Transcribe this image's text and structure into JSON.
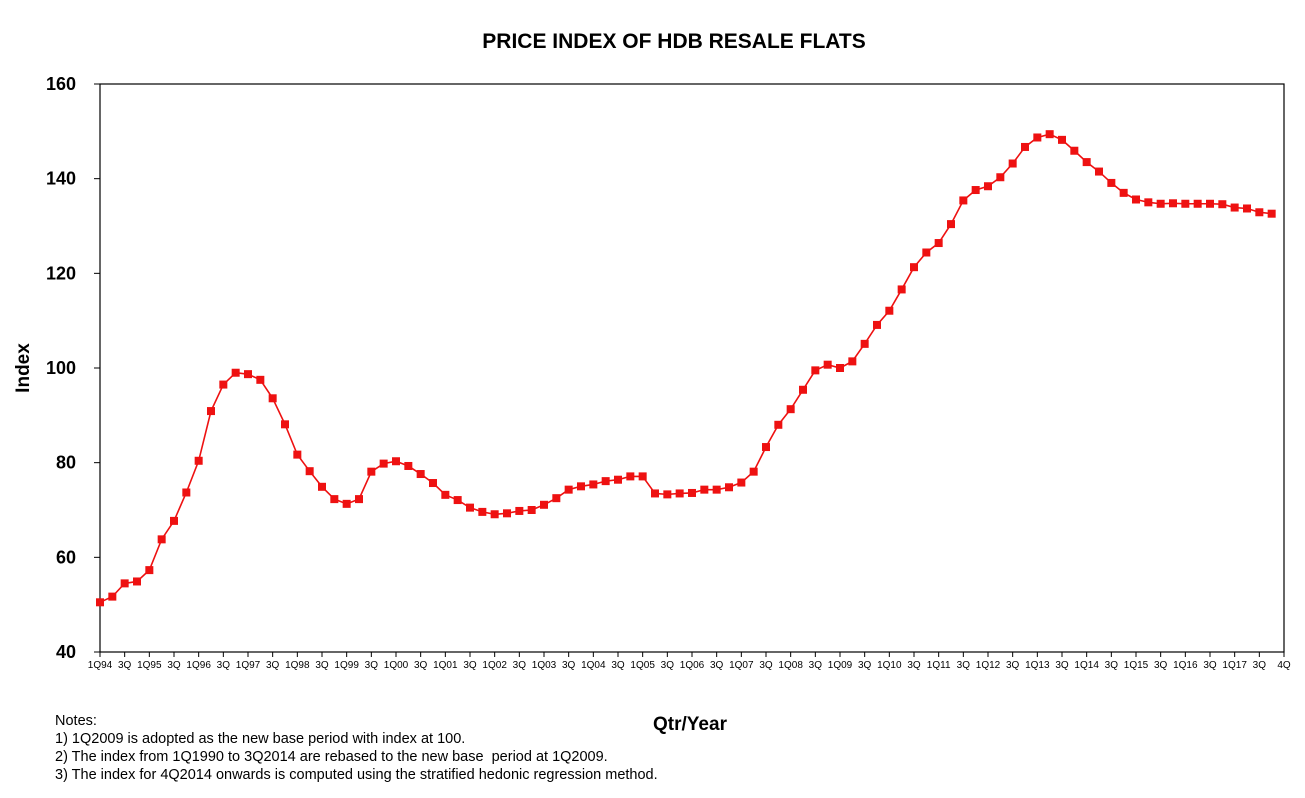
{
  "chart_data": {
    "type": "line",
    "title": "PRICE INDEX OF HDB RESALE FLATS",
    "xlabel": "Qtr/Year",
    "ylabel": "Index",
    "ylim": [
      40,
      160
    ],
    "yticks": [
      40,
      60,
      80,
      100,
      120,
      140,
      160
    ],
    "grid": false,
    "legend": "none",
    "color": "#ee1111",
    "tick_labels": [
      "1Q94",
      "3Q",
      "1Q95",
      "3Q",
      "1Q96",
      "3Q",
      "1Q97",
      "3Q",
      "1Q98",
      "3Q",
      "1Q99",
      "3Q",
      "1Q00",
      "3Q",
      "1Q01",
      "3Q",
      "1Q02",
      "3Q",
      "1Q03",
      "3Q",
      "1Q04",
      "3Q",
      "1Q05",
      "3Q",
      "1Q06",
      "3Q",
      "1Q07",
      "3Q",
      "1Q08",
      "3Q",
      "1Q09",
      "3Q",
      "1Q10",
      "3Q",
      "1Q11",
      "3Q",
      "1Q12",
      "3Q",
      "1Q13",
      "3Q",
      "1Q14",
      "3Q",
      "1Q15",
      "3Q",
      "1Q16",
      "3Q",
      "1Q17",
      "3Q",
      "4Q"
    ],
    "x": [
      "1Q94",
      "2Q94",
      "3Q94",
      "4Q94",
      "1Q95",
      "2Q95",
      "3Q95",
      "4Q95",
      "1Q96",
      "2Q96",
      "3Q96",
      "4Q96",
      "1Q97",
      "2Q97",
      "3Q97",
      "4Q97",
      "1Q98",
      "2Q98",
      "3Q98",
      "4Q98",
      "1Q99",
      "2Q99",
      "3Q99",
      "4Q99",
      "1Q00",
      "2Q00",
      "3Q00",
      "4Q00",
      "1Q01",
      "2Q01",
      "3Q01",
      "4Q01",
      "1Q02",
      "2Q02",
      "3Q02",
      "4Q02",
      "1Q03",
      "2Q03",
      "3Q03",
      "4Q03",
      "1Q04",
      "2Q04",
      "3Q04",
      "4Q04",
      "1Q05",
      "2Q05",
      "3Q05",
      "4Q05",
      "1Q06",
      "2Q06",
      "3Q06",
      "4Q06",
      "1Q07",
      "2Q07",
      "3Q07",
      "4Q07",
      "1Q08",
      "2Q08",
      "3Q08",
      "4Q08",
      "1Q09",
      "2Q09",
      "3Q09",
      "4Q09",
      "1Q10",
      "2Q10",
      "3Q10",
      "4Q10",
      "1Q11",
      "2Q11",
      "3Q11",
      "4Q11",
      "1Q12",
      "2Q12",
      "3Q12",
      "4Q12",
      "1Q13",
      "2Q13",
      "3Q13",
      "4Q13",
      "1Q14",
      "2Q14",
      "3Q14",
      "4Q14",
      "1Q15",
      "2Q15",
      "3Q15",
      "4Q15",
      "1Q16",
      "2Q16",
      "3Q16",
      "4Q16",
      "1Q17",
      "2Q17",
      "3Q17",
      "4Q17"
    ],
    "values": [
      50.5,
      51.7,
      54.5,
      54.9,
      57.3,
      63.8,
      67.7,
      73.7,
      80.4,
      90.9,
      96.5,
      99.0,
      98.7,
      97.5,
      93.6,
      88.1,
      81.7,
      78.2,
      74.9,
      72.3,
      71.3,
      72.3,
      78.1,
      79.8,
      80.3,
      79.3,
      77.6,
      75.7,
      73.2,
      72.1,
      70.5,
      69.6,
      69.1,
      69.3,
      69.8,
      70.0,
      71.1,
      72.5,
      74.3,
      75.0,
      75.4,
      76.1,
      76.4,
      77.1,
      77.1,
      73.5,
      73.3,
      73.5,
      73.6,
      74.3,
      74.3,
      74.8,
      75.8,
      78.1,
      83.3,
      88.0,
      91.3,
      95.4,
      99.5,
      100.7,
      100.0,
      101.4,
      105.1,
      109.1,
      112.1,
      116.6,
      121.3,
      124.4,
      126.4,
      130.4,
      135.4,
      137.6,
      138.4,
      140.3,
      143.2,
      146.7,
      148.7,
      149.4,
      148.2,
      145.9,
      143.5,
      141.5,
      139.1,
      137.0,
      135.6,
      135.0,
      134.7,
      134.8,
      134.7,
      134.7,
      134.7,
      134.6,
      133.9,
      133.7,
      132.9,
      132.6
    ]
  },
  "notes": {
    "heading": "Notes:",
    "items": [
      "1) 1Q2009 is adopted as the new base period with index at 100.",
      "2) The index from 1Q1990 to 3Q2014 are rebased to the new base  period at 1Q2009.",
      "3) The index for 4Q2014 onwards is computed using the stratified hedonic regression method."
    ]
  }
}
